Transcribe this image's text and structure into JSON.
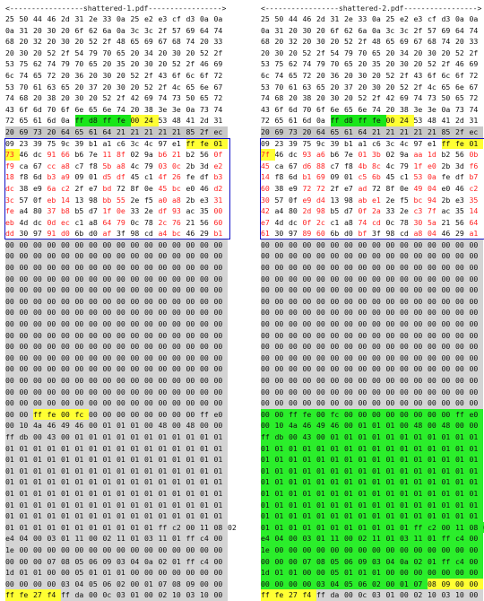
{
  "left": {
    "title": "<-----------------shattered-1.pdf----------------->",
    "rows": [
      "25 50 44 46 2d 31 2e 33 0a 25 e2 e3 cf d3 0a 0a",
      "0a 31 20 30 20 6f 62 6a 0a 3c 3c 2f 57 69 64 74",
      "68 20 32 20 30 20 52 2f 48 65 69 67 68 74 20 33",
      "20 30 20 52 2f 54 79 70 65 20 34 20 30 20 52 2f",
      "53 75 62 74 79 70 65 20 35 20 30 20 52 2f 46 69",
      "6c 74 65 72 20 36 20 30 20 52 2f 43 6f 6c 6f 72",
      "53 70 61 63 65 20 37 20 30 20 52 2f 4c 65 6e 67",
      "74 68 20 38 20 30 20 52 2f 42 69 74 73 50 65 72",
      "43 6f 6d 70 6f 6e 65 6e 74 20 38 3e 3e 0a 73 74",
      "72 65 61 6d 0a ff d8 ff fe 00 24 53 48 41 2d 31",
      "20 69 73 20 64 65 61 64 21 21 21 21 21 85 2f ec",
      "09 23 39 75 9c 39 b1 a1 c6 3c 4c 97 e1 ff fe 01",
      "73 46 dc 91 66 b6 7e 11 8f 02 9a b6 21 b2 56 0f",
      "f9 ca 67 cc a8 c7 f8 5b a8 4c 79 03 0c 2b 3d e2",
      "18 f8 6d b3 a9 09 01 d5 df 45 c1 4f 26 fe df b3",
      "dc 38 e9 6a c2 2f e7 bd 72 8f 0e 45 bc e0 46 d2",
      "3c 57 0f eb 14 13 98 bb 55 2e f5 a0 a8 2b e3 31",
      "fe a4 80 37 b8 b5 d7 1f 0e 33 2e df 93 ac 35 00",
      "eb 4d dc 0d ec c1 a8 64 79 0c 78 2c 76 21 56 60",
      "dd 30 97 91 d0 6b d0 af 3f 98 cd a4 bc 46 29 b1",
      "00 00 00 00 00 00 00 00 00 00 00 00 00 00 00 00",
      "00 00 00 00 00 00 00 00 00 00 00 00 00 00 00 00",
      "00 00 00 00 00 00 00 00 00 00 00 00 00 00 00 00",
      "00 00 00 00 00 00 00 00 00 00 00 00 00 00 00 00",
      "00 00 00 00 00 00 00 00 00 00 00 00 00 00 00 00",
      "00 00 00 00 00 00 00 00 00 00 00 00 00 00 00 00",
      "00 00 00 00 00 00 00 00 00 00 00 00 00 00 00 00",
      "00 00 00 00 00 00 00 00 00 00 00 00 00 00 00 00",
      "00 00 00 00 00 00 00 00 00 00 00 00 00 00 00 00",
      "00 00 00 00 00 00 00 00 00 00 00 00 00 00 00 00",
      "00 00 00 00 00 00 00 00 00 00 00 00 00 00 00 00",
      "00 00 00 00 00 00 00 00 00 00 00 00 00 00 00 00",
      "00 00 00 00 00 00 00 00 00 00 00 00 00 00 00 00",
      "00 00 00 00 00 00 00 00 00 00 00 00 00 00 00 00",
      "00 00 00 00 00 00 00 00 00 00 00 00 00 00 00 00",
      "00 00 ff fe 00 fc 00 00 00 00 00 00 00 00 ff e0",
      "00 10 4a 46 49 46 00 01 01 01 00 48 00 48 00 00",
      "ff db 00 43 00 01 01 01 01 01 01 01 01 01 01 01",
      "01 01 01 01 01 01 01 01 01 01 01 01 01 01 01 01",
      "01 01 01 01 01 01 01 01 01 01 01 01 01 01 01 01",
      "01 01 01 01 01 01 01 01 01 01 01 01 01 01 01 01",
      "01 01 01 01 01 01 01 01 01 01 01 01 01 01 01 01",
      "01 01 01 01 01 01 01 01 01 01 01 01 01 01 01 01",
      "01 01 01 01 01 01 01 01 01 01 01 01 01 01 01 01",
      "01 01 01 01 01 01 01 01 01 01 01 01 01 01 01 01",
      "01 01 01 01 01 01 01 01 01 01 01 ff c2 00 11 08 02",
      "e4 04 00 03 01 11 00 02 11 01 03 11 01 ff c4 00",
      "1e 00 00 00 00 00 00 00 00 00 00 00 00 00 00 00",
      "00 00 00 07 08 05 06 09 03 04 0a 02 01 ff c4 00",
      "1d 01 01 00 00 05 01 01 01 00 00 00 00 00 00 00",
      "00 00 00 00 03 04 05 06 02 00 01 07 08 09 00 00",
      "ff fe 27 f4 ff da 00 0c 03 01 00 02 10 03 10 00"
    ]
  },
  "right": {
    "title": "<-----------------shattered-2.pdf----------------->",
    "rows": [
      "25 50 44 46 2d 31 2e 33 0a 25 e2 e3 cf d3 0a 0a",
      "0a 31 20 30 20 6f 62 6a 0a 3c 3c 2f 57 69 64 74",
      "68 20 32 20 30 20 52 2f 48 65 69 67 68 74 20 33",
      "20 30 20 52 2f 54 79 70 65 20 34 20 30 20 52 2f",
      "53 75 62 74 79 70 65 20 35 20 30 20 52 2f 46 69",
      "6c 74 65 72 20 36 20 30 20 52 2f 43 6f 6c 6f 72",
      "53 70 61 63 65 20 37 20 30 20 52 2f 4c 65 6e 67",
      "74 68 20 38 20 30 20 52 2f 42 69 74 73 50 65 72",
      "43 6f 6d 70 6f 6e 65 6e 74 20 38 3e 3e 0a 73 74",
      "72 65 61 6d 0a ff d8 ff fe 00 24 53 48 41 2d 31",
      "20 69 73 20 64 65 61 64 21 21 21 21 21 85 2f ec",
      "09 23 39 75 9c 39 b1 a1 c6 3c 4c 97 e1 ff fe 01",
      "7f 46 dc 93 a6 b6 7e 01 3b 02 9a aa 1d b2 56 0b",
      "45 ca 67 d6 88 c7 f8 4b 8c 4c 79 1f e0 2b 3d f6",
      "14 f8 6d b1 69 09 01 c5 6b 45 c1 53 0a fe df b7",
      "60 38 e9 72 72 2f e7 ad 72 8f 0e 49 04 e0 46 c2",
      "30 57 0f e9 d4 13 98 ab e1 2e f5 bc 94 2b e3 35",
      "42 a4 80 2d 98 b5 d7 0f 2a 33 2e c3 7f ac 35 14",
      "e7 4d dc 0f 2c c1 a8 74 cd 0c 78 30 5a 21 56 64",
      "61 30 97 89 60 6b d0 bf 3f 98 cd a8 04 46 29 a1",
      "00 00 00 00 00 00 00 00 00 00 00 00 00 00 00 00",
      "00 00 00 00 00 00 00 00 00 00 00 00 00 00 00 00",
      "00 00 00 00 00 00 00 00 00 00 00 00 00 00 00 00",
      "00 00 00 00 00 00 00 00 00 00 00 00 00 00 00 00",
      "00 00 00 00 00 00 00 00 00 00 00 00 00 00 00 00",
      "00 00 00 00 00 00 00 00 00 00 00 00 00 00 00 00",
      "00 00 00 00 00 00 00 00 00 00 00 00 00 00 00 00",
      "00 00 00 00 00 00 00 00 00 00 00 00 00 00 00 00",
      "00 00 00 00 00 00 00 00 00 00 00 00 00 00 00 00",
      "00 00 00 00 00 00 00 00 00 00 00 00 00 00 00 00",
      "00 00 00 00 00 00 00 00 00 00 00 00 00 00 00 00",
      "00 00 00 00 00 00 00 00 00 00 00 00 00 00 00 00",
      "00 00 00 00 00 00 00 00 00 00 00 00 00 00 00 00",
      "00 00 00 00 00 00 00 00 00 00 00 00 00 00 00 00",
      "00 00 00 00 00 00 00 00 00 00 00 00 00 00 00 00",
      "00 00 ff fe 00 fc 00 00 00 00 00 00 00 00 ff e0",
      "00 10 4a 46 49 46 00 01 01 01 00 48 00 48 00 00",
      "ff db 00 43 00 01 01 01 01 01 01 01 01 01 01 01",
      "01 01 01 01 01 01 01 01 01 01 01 01 01 01 01 01",
      "01 01 01 01 01 01 01 01 01 01 01 01 01 01 01 01",
      "01 01 01 01 01 01 01 01 01 01 01 01 01 01 01 01",
      "01 01 01 01 01 01 01 01 01 01 01 01 01 01 01 01",
      "01 01 01 01 01 01 01 01 01 01 01 01 01 01 01 01",
      "01 01 01 01 01 01 01 01 01 01 01 01 01 01 01 01",
      "01 01 01 01 01 01 01 01 01 01 01 01 01 01 01 01",
      "01 01 01 01 01 01 01 01 01 01 01 ff c2 00 11 08 02",
      "e4 04 00 03 01 11 00 02 11 01 03 11 01 ff c4 00",
      "1e 00 00 00 00 00 00 00 00 00 00 00 00 00 00 00",
      "00 00 00 07 08 05 06 09 03 04 0a 02 01 ff c4 00",
      "1d 01 01 00 00 05 01 01 01 00 00 00 00 00 00 00",
      "00 00 00 00 03 04 05 06 02 00 01 07 08 09 00 00",
      "ff fe 27 f4 ff da 00 0c 03 01 00 02 10 03 10 00"
    ]
  },
  "colors": {
    "header_marker": "#ffff33",
    "jpeg_marker": "#19e619",
    "diff_block_border": "#1010c8",
    "gray_row": "#c8c8c8",
    "diff_red": "#ff2222",
    "diff_blue": "#2233dd",
    "green_region": "#2bee2b"
  }
}
